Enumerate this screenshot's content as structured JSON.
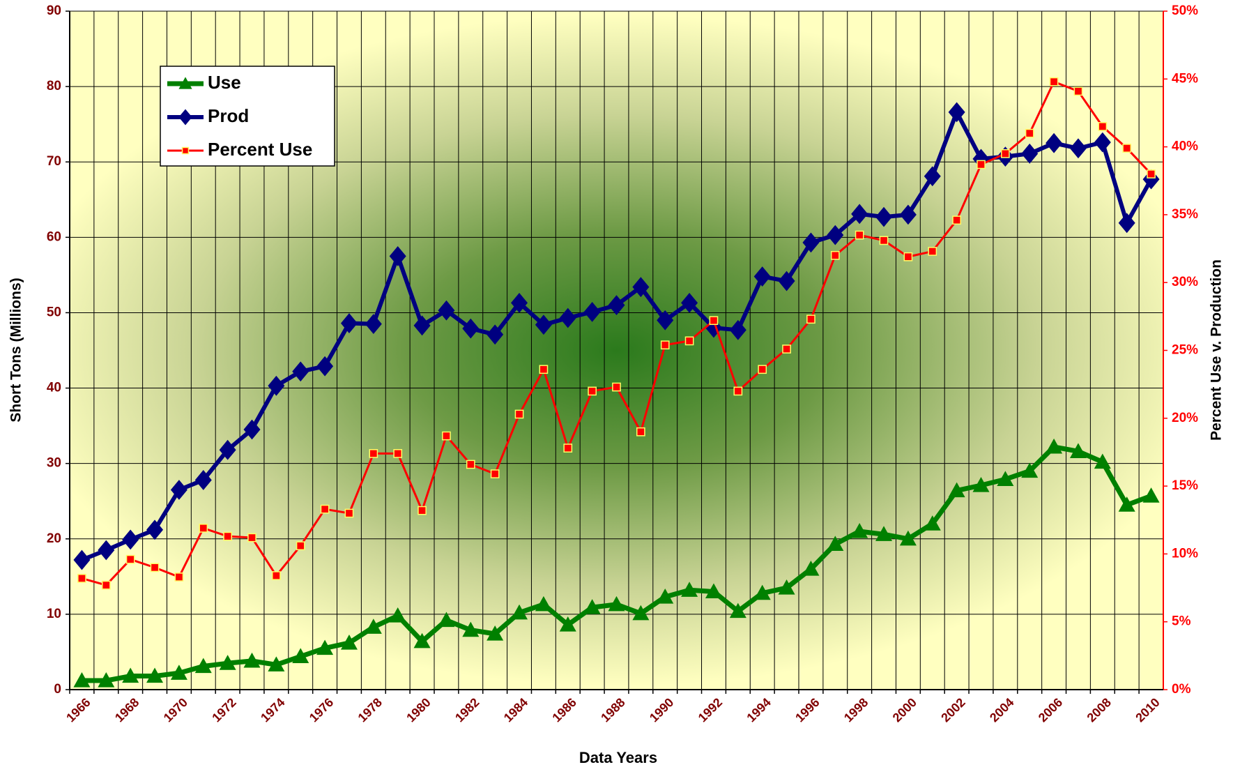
{
  "chart_data": {
    "type": "line",
    "x_label": "Data Years",
    "y_label": "Short Tons (Millions)",
    "y2_label": "Percent Use v. Production",
    "categories": [
      "1966",
      null,
      "1968",
      null,
      "1970",
      null,
      "1972",
      null,
      "1974",
      null,
      "1976",
      null,
      "1978",
      null,
      "1980",
      null,
      "1982",
      null,
      "1984",
      null,
      "1986",
      null,
      "1988",
      null,
      "1990",
      null,
      "1992",
      null,
      "1994",
      null,
      "1996",
      null,
      "1998",
      null,
      "2000",
      null,
      "2002",
      null,
      "2004",
      null,
      "2006",
      null,
      "2008",
      null,
      "2010"
    ],
    "series": [
      {
        "name": "Use",
        "color": "#008000",
        "marker": "triangle",
        "axis": "y",
        "values": [
          1.2,
          1.2,
          1.8,
          1.8,
          2.2,
          3.1,
          3.5,
          3.8,
          3.3,
          4.4,
          5.5,
          6.2,
          8.3,
          9.8,
          6.4,
          9.2,
          7.9,
          7.4,
          10.2,
          11.3,
          8.6,
          10.9,
          11.3,
          10.1,
          12.3,
          13.2,
          13.0,
          10.4,
          12.8,
          13.5,
          16.0,
          19.3,
          21.0,
          20.6,
          20.0,
          22.0,
          26.4,
          27.1,
          27.9,
          29.0,
          32.2,
          31.6,
          30.2,
          24.5,
          25.7
        ]
      },
      {
        "name": "Prod",
        "color": "#000080",
        "marker": "diamond",
        "axis": "y",
        "values": [
          17.2,
          18.5,
          19.9,
          21.2,
          26.5,
          27.8,
          31.8,
          34.5,
          40.3,
          42.2,
          42.9,
          48.6,
          48.5,
          57.5,
          48.3,
          50.3,
          47.9,
          47.1,
          51.3,
          48.4,
          49.3,
          50.1,
          51.0,
          53.4,
          49.0,
          51.3,
          48.0,
          47.7,
          54.8,
          54.2,
          59.3,
          60.3,
          63.1,
          62.7,
          63.0,
          68.1,
          76.6,
          70.4,
          70.7,
          71.1,
          72.5,
          71.8,
          72.6,
          61.9,
          67.7
        ]
      },
      {
        "name": "Percent Use",
        "color": "#ff0000",
        "marker": "square",
        "axis": "y2",
        "values": [
          8.2,
          7.7,
          9.6,
          9.0,
          8.3,
          11.9,
          11.3,
          11.2,
          8.4,
          10.6,
          13.3,
          13.0,
          17.4,
          17.4,
          13.2,
          18.7,
          16.6,
          15.9,
          20.3,
          23.6,
          17.8,
          22.0,
          22.3,
          19.0,
          25.4,
          25.7,
          27.2,
          22.0,
          23.6,
          25.1,
          27.3,
          32.0,
          33.5,
          33.1,
          31.9,
          32.3,
          34.6,
          38.7,
          39.5,
          41.0,
          44.8,
          44.1,
          41.5,
          39.9,
          38.0
        ]
      }
    ],
    "ylim": [
      0,
      90
    ],
    "yticks": [
      0,
      10,
      20,
      30,
      40,
      50,
      60,
      70,
      80,
      90
    ],
    "y2lim": [
      0,
      50
    ],
    "y2ticks": [
      {
        "value": 0,
        "label": "0%"
      },
      {
        "value": 5,
        "label": "5%"
      },
      {
        "value": 10,
        "label": "10%"
      },
      {
        "value": 15,
        "label": "15%"
      },
      {
        "value": 20,
        "label": "20%"
      },
      {
        "value": 25,
        "label": "25%"
      },
      {
        "value": 30,
        "label": "30%"
      },
      {
        "value": 35,
        "label": "35%"
      },
      {
        "value": 40,
        "label": "40%"
      },
      {
        "value": 45,
        "label": "45%"
      },
      {
        "value": 50,
        "label": "50%"
      }
    ],
    "grid": true,
    "legend": "upper left"
  }
}
